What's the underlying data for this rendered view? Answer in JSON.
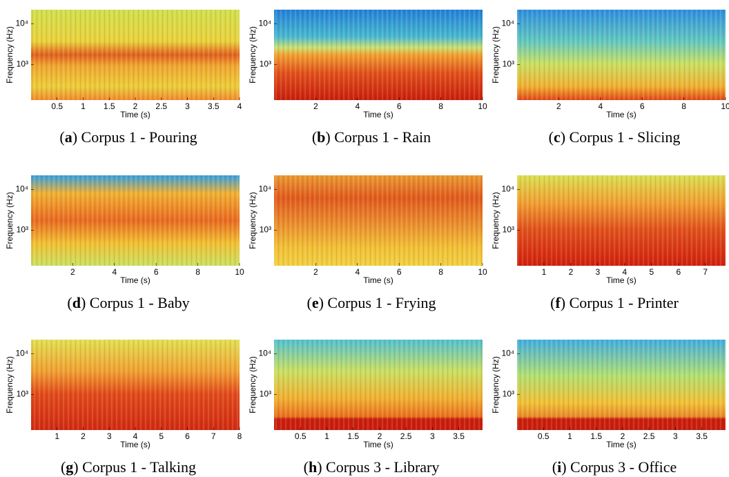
{
  "chart_data": [
    {
      "type": "spectrogram",
      "caption": {
        "open": "(",
        "letter": "a",
        "rest": ") Corpus 1 - Pouring"
      },
      "x_label": "Time (s)",
      "y_label": "Frequency (Hz)",
      "y_scale": "log",
      "xlim": [
        0,
        4
      ],
      "xticks": [
        0.5,
        1,
        1.5,
        2,
        2.5,
        3,
        3.5,
        4
      ],
      "ylim": [
        135,
        22050
      ],
      "yticks": [
        {
          "value": 1000,
          "label": "10³"
        },
        {
          "value": 10000,
          "label": "10⁴"
        }
      ]
    },
    {
      "type": "spectrogram",
      "caption": {
        "open": "(",
        "letter": "b",
        "rest": ") Corpus 1 - Rain"
      },
      "x_label": "Time (s)",
      "y_label": "Frequency (Hz)",
      "y_scale": "log",
      "xlim": [
        0,
        10
      ],
      "xticks": [
        2,
        4,
        6,
        8,
        10
      ],
      "ylim": [
        135,
        22050
      ],
      "yticks": [
        {
          "value": 1000,
          "label": "10³"
        },
        {
          "value": 10000,
          "label": "10⁴"
        }
      ]
    },
    {
      "type": "spectrogram",
      "caption": {
        "open": "(",
        "letter": "c",
        "rest": ") Corpus 1 - Slicing"
      },
      "x_label": "Time (s)",
      "y_label": "Frequency (Hz)",
      "y_scale": "log",
      "xlim": [
        0,
        10
      ],
      "xticks": [
        2,
        4,
        6,
        8,
        10
      ],
      "ylim": [
        135,
        22050
      ],
      "yticks": [
        {
          "value": 1000,
          "label": "10³"
        },
        {
          "value": 10000,
          "label": "10⁴"
        }
      ]
    },
    {
      "type": "spectrogram",
      "caption": {
        "open": "(",
        "letter": "d",
        "rest": ") Corpus 1 - Baby"
      },
      "x_label": "Time (s)",
      "y_label": "Frequency (Hz)",
      "y_scale": "log",
      "xlim": [
        0,
        10
      ],
      "xticks": [
        2,
        4,
        6,
        8,
        10
      ],
      "ylim": [
        135,
        22050
      ],
      "yticks": [
        {
          "value": 1000,
          "label": "10³"
        },
        {
          "value": 10000,
          "label": "10⁴"
        }
      ]
    },
    {
      "type": "spectrogram",
      "caption": {
        "open": "(",
        "letter": "e",
        "rest": ") Corpus 1 - Frying"
      },
      "x_label": "Time (s)",
      "y_label": "Frequency (Hz)",
      "y_scale": "log",
      "xlim": [
        0,
        10
      ],
      "xticks": [
        2,
        4,
        6,
        8,
        10
      ],
      "ylim": [
        135,
        22050
      ],
      "yticks": [
        {
          "value": 1000,
          "label": "10³"
        },
        {
          "value": 10000,
          "label": "10⁴"
        }
      ]
    },
    {
      "type": "spectrogram",
      "caption": {
        "open": "(",
        "letter": "f",
        "rest": ") Corpus 1 - Printer"
      },
      "x_label": "Time (s)",
      "y_label": "Frequency (Hz)",
      "y_scale": "log",
      "xlim": [
        0,
        7.75
      ],
      "xticks": [
        1,
        2,
        3,
        4,
        5,
        6,
        7
      ],
      "ylim": [
        135,
        22050
      ],
      "yticks": [
        {
          "value": 1000,
          "label": "10³"
        },
        {
          "value": 10000,
          "label": "10⁴"
        }
      ]
    },
    {
      "type": "spectrogram",
      "caption": {
        "open": "(",
        "letter": "g",
        "rest": ") Corpus 1 - Talking"
      },
      "x_label": "Time (s)",
      "y_label": "Frequency (Hz)",
      "y_scale": "log",
      "xlim": [
        0,
        8
      ],
      "xticks": [
        1,
        2,
        3,
        4,
        5,
        6,
        7,
        8
      ],
      "ylim": [
        135,
        22050
      ],
      "yticks": [
        {
          "value": 1000,
          "label": "10³"
        },
        {
          "value": 10000,
          "label": "10⁴"
        }
      ]
    },
    {
      "type": "spectrogram",
      "caption": {
        "open": "(",
        "letter": "h",
        "rest": ") Corpus 3 - Library"
      },
      "x_label": "Time (s)",
      "y_label": "Frequency (Hz)",
      "y_scale": "log",
      "xlim": [
        0,
        3.95
      ],
      "xticks": [
        0.5,
        1,
        1.5,
        2,
        2.5,
        3,
        3.5
      ],
      "ylim": [
        135,
        22050
      ],
      "yticks": [
        {
          "value": 1000,
          "label": "10³"
        },
        {
          "value": 10000,
          "label": "10⁴"
        }
      ]
    },
    {
      "type": "spectrogram",
      "caption": {
        "open": "(",
        "letter": "i",
        "rest": ") Corpus 3 - Office"
      },
      "x_label": "Time (s)",
      "y_label": "Frequency (Hz)",
      "y_scale": "log",
      "xlim": [
        0,
        3.95
      ],
      "xticks": [
        0.5,
        1,
        1.5,
        2,
        2.5,
        3,
        3.5
      ],
      "ylim": [
        135,
        22050
      ],
      "yticks": [
        {
          "value": 1000,
          "label": "10³"
        },
        {
          "value": 10000,
          "label": "10⁴"
        }
      ]
    }
  ]
}
